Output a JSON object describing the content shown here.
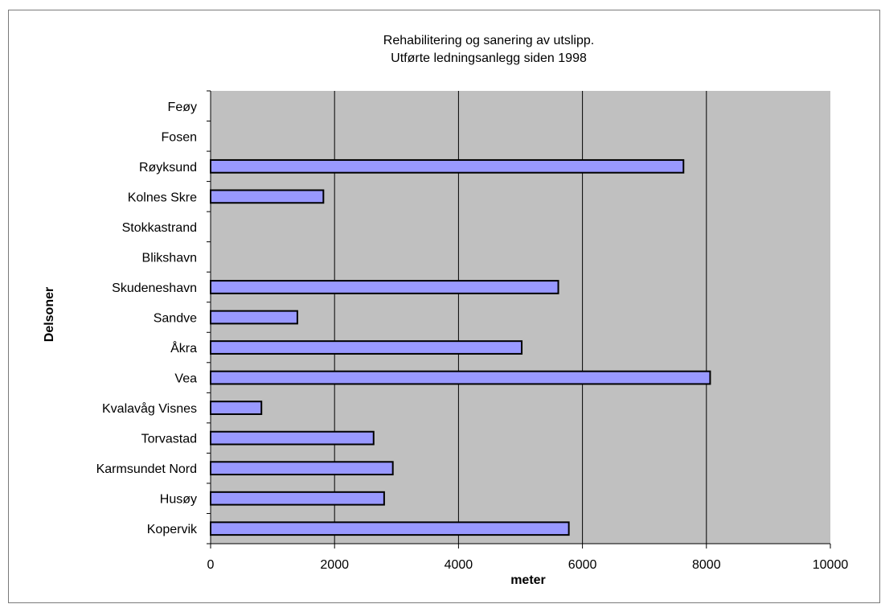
{
  "chart_data": {
    "type": "bar",
    "orientation": "horizontal",
    "title": [
      "Rehabilitering og sanering av utslipp.",
      "Utførte ledningsanlegg siden 1998"
    ],
    "xlabel": "meter",
    "ylabel": "Delsoner",
    "xlim": [
      0,
      10000
    ],
    "xticks": [
      0,
      2000,
      4000,
      6000,
      8000,
      10000
    ],
    "grid": "vertical",
    "legend": "none",
    "categories": [
      "Kopervik",
      "Husøy",
      "Karmsundet Nord",
      "Torvastad",
      "Kvalavåg Visnes",
      "Vea",
      "Åkra",
      "Sandve",
      "Skudeneshavn",
      "Blikshavn",
      "Stokkastrand",
      "Kolnes Skre",
      "Røyksund",
      "Fosen",
      "Feøy"
    ],
    "values": [
      5780,
      2800,
      2940,
      2630,
      820,
      8060,
      5020,
      1400,
      5610,
      0,
      0,
      1820,
      7630,
      0,
      0
    ],
    "colors": {
      "bar": "#9999ff",
      "plot_bg": "#c0c0c0",
      "grid": "#000000"
    }
  }
}
